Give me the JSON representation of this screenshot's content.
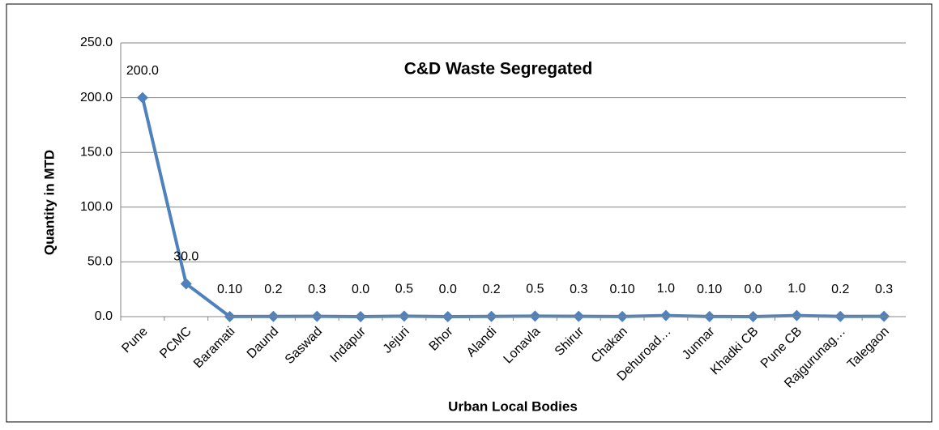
{
  "chart_data": {
    "type": "line",
    "title": "C&D Waste Segregated",
    "x_label": "Urban Local Bodies",
    "y_label": "Quantity in MTD",
    "categories": [
      "Pune",
      "PCMC",
      "Baramati",
      "Daund",
      "Saswad",
      "Indapur",
      "Jejuri",
      "Bhor",
      "Alandi",
      "Lonavla",
      "Shirur",
      "Chakan",
      "Dehuroad…",
      "Junnar",
      "Khadki CB",
      "Pune CB",
      "Rajgurunag…",
      "Talegaon"
    ],
    "values": [
      200,
      30,
      0.1,
      0.2,
      0.3,
      0,
      0.5,
      0,
      0.2,
      0.5,
      0.3,
      0.1,
      1,
      0.1,
      0,
      1,
      0.2,
      0.3
    ],
    "value_labels": [
      "200.0",
      "30.0",
      "0.10",
      "0.2",
      "0.3",
      "0.0",
      "0.5",
      "0.0",
      "0.2",
      "0.5",
      "0.3",
      "0.10",
      "1.0",
      "0.10",
      "0.0",
      "1.0",
      "0.2",
      "0.3"
    ],
    "color": "#4f81bd",
    "ylim": [
      0,
      250
    ],
    "yticks": [
      {
        "value": 0,
        "label": "0.0"
      },
      {
        "value": 50,
        "label": "50.0"
      },
      {
        "value": 100,
        "label": "100.0"
      },
      {
        "value": 150,
        "label": "150.0"
      },
      {
        "value": 200,
        "label": "200.0"
      },
      {
        "value": 250,
        "label": "250.0"
      }
    ],
    "grid": true
  }
}
